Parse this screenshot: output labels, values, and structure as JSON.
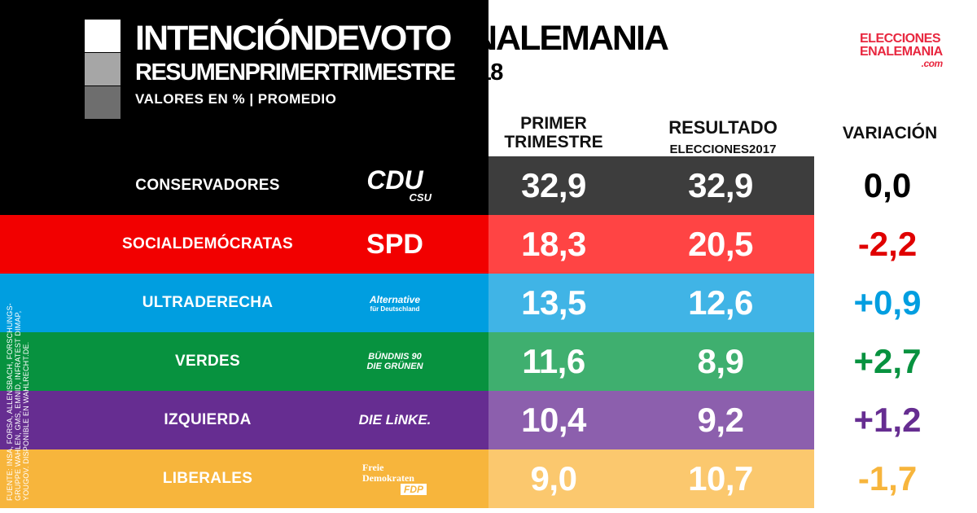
{
  "title": "INTENCIÓNDEVOTOENALEMANIA",
  "subtitle": "RESUMENPRIMERTRIMESTRE2018",
  "units": "VALORES EN % | PROMEDIO",
  "brand": {
    "line1": "ELECCIONES",
    "line2": "ENALEMANIA",
    "line3": ".com",
    "color": "#e8273f"
  },
  "headers": {
    "col1_line1": "PRIMER",
    "col1_line2": "TRIMESTRE",
    "col2_line1": "RESULTADO",
    "col2_line2": "ELECCIONES2017",
    "col3": "VARIACIÓN"
  },
  "source_note": "FUENTE: INSA, FORSA, ALLENSBACH, FORSCHUNGS-GRUPPE WAHLEN, GMS, EMNID, INFRATEST DIMAP, YOUGOV. DISPONIBLE EN WAHLRECHT.DE.",
  "chart_data": {
    "type": "table",
    "title": "INTENCIÓNDEVOTOENALEMANIA",
    "subtitle": "RESUMENPRIMERTRIMESTRE2018",
    "columns": [
      "PRIMER TRIMESTRE",
      "RESULTADO ELECCIONES2017",
      "VARIACIÓN"
    ],
    "rows": [
      {
        "label": "CONSERVADORES",
        "logo": "cdu-csu-logo",
        "logo_text": "CDU",
        "logo_sub": "CSU",
        "q1": "32,9",
        "e2017": "32,9",
        "variation": "0,0",
        "color_main": "#000000",
        "color_mid": "#3d3d3d",
        "color_var": "#000000"
      },
      {
        "label": "SOCIALDEMÓCRATAS",
        "logo": "spd-logo",
        "logo_text": "SPD",
        "logo_sub": "",
        "q1": "18,3",
        "e2017": "20,5",
        "variation": "-2,2",
        "color_main": "#f20000",
        "color_mid": "#ff4444",
        "color_var": "#e00000"
      },
      {
        "label": "ULTRADERECHA",
        "logo": "afd-logo",
        "logo_text": "Alternative",
        "logo_sub": "für Deutschland",
        "q1": "13,5",
        "e2017": "12,6",
        "variation": "+0,9",
        "color_main": "#009ee0",
        "color_mid": "#40b4e6",
        "color_var": "#009ee0"
      },
      {
        "label": "VERDES",
        "logo": "gruene-logo",
        "logo_text": "BÜNDNIS 90",
        "logo_sub": "DIE GRÜNEN",
        "q1": "11,6",
        "e2017": "8,9",
        "variation": "+2,7",
        "color_main": "#07923f",
        "color_mid": "#3faf6f",
        "color_var": "#07923f"
      },
      {
        "label": "IZQUIERDA",
        "logo": "linke-logo",
        "logo_text": "DIE LiNKE.",
        "logo_sub": "",
        "q1": "10,4",
        "e2017": "9,2",
        "variation": "+1,2",
        "color_main": "#662d91",
        "color_mid": "#8c5fad",
        "color_var": "#662d91"
      },
      {
        "label": "LIBERALES",
        "logo": "fdp-logo",
        "logo_text": "Freie Demokraten",
        "logo_sub": "FDP",
        "q1": "9,0",
        "e2017": "10,7",
        "variation": "-1,7",
        "color_main": "#f7b53c",
        "color_mid": "#fbc86e",
        "color_var": "#f7b53c"
      }
    ]
  }
}
